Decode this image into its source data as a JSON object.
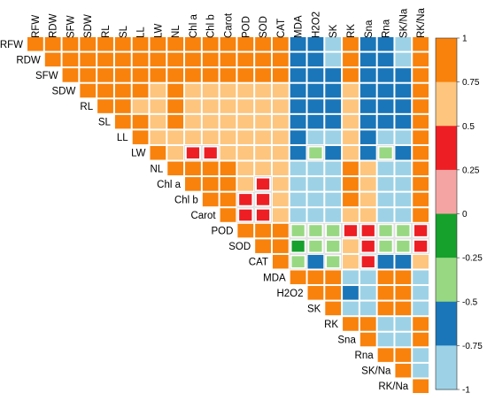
{
  "chart_data": {
    "type": "heatmap",
    "title": "",
    "variables": [
      "RFW",
      "RDW",
      "SFW",
      "SDW",
      "RL",
      "SL",
      "LL",
      "LW",
      "NL",
      "Chl a",
      "Chl b",
      "Carot",
      "POD",
      "SOD",
      "CAT",
      "MDA",
      "H2O2",
      "SK",
      "RK",
      "Sna",
      "Rna",
      "SK/Na",
      "RK/Na"
    ],
    "matrix_layout": "upper-triangle",
    "value_range": [
      -1,
      1
    ],
    "color_bins": [
      {
        "from": 0.75,
        "to": 1,
        "color": "#F8820C"
      },
      {
        "from": 0.5,
        "to": 0.75,
        "color": "#FDC57E"
      },
      {
        "from": 0.25,
        "to": 0.5,
        "color": "#ED1E24"
      },
      {
        "from": 0,
        "to": 0.25,
        "color": "#F4A5A3"
      },
      {
        "from": -0.25,
        "to": 0,
        "color": "#16A02C"
      },
      {
        "from": -0.5,
        "to": -0.25,
        "color": "#98D883"
      },
      {
        "from": -0.75,
        "to": -0.5,
        "color": "#1A76B9"
      },
      {
        "from": -1,
        "to": -0.75,
        "color": "#9DD2E6"
      }
    ],
    "legend_ticks": [
      "1",
      "0.75",
      "0.5",
      "0.25",
      "0",
      "-0.25",
      "-0.5",
      "-0.75",
      "-1"
    ],
    "legend_position": "right",
    "cells": [
      [
        "1.00",
        "0.88",
        "0.85",
        "0.86",
        "0.82",
        "0.84",
        "0.83",
        "0.80",
        "0.86",
        "0.80",
        "0.80",
        "0.80",
        "0.80",
        "0.80",
        "0.80",
        "-0.62",
        "-0.62",
        "-0.85",
        "0.80",
        "-0.62",
        "-0.62",
        "-0.85",
        "0.84"
      ],
      [
        "0.88",
        "1.00",
        "0.85",
        "0.86",
        "0.82",
        "0.84",
        "0.83",
        "0.80",
        "0.86",
        "0.80",
        "0.80",
        "0.80",
        "0.80",
        "0.80",
        "0.80",
        "-0.62",
        "-0.62",
        "-0.85",
        "0.80",
        "-0.62",
        "-0.62",
        "-0.85",
        "0.84"
      ],
      [
        "0.85",
        "0.85",
        "1.00",
        "0.86",
        "0.82",
        "0.84",
        "0.83",
        "0.80",
        "0.86",
        "0.80",
        "0.80",
        "0.80",
        "0.80",
        "0.80",
        "0.80",
        "-0.62",
        "-0.62",
        "-0.62",
        "0.80",
        "-0.62",
        "-0.62",
        "-0.62",
        "0.84"
      ],
      [
        "0.86",
        "0.86",
        "0.86",
        "1.00",
        "0.82",
        "0.84",
        "0.83",
        "0.62",
        "0.86",
        "0.62",
        "0.62",
        "0.62",
        "0.62",
        "0.62",
        "0.62",
        "-0.62",
        "-0.62",
        "-0.62",
        "0.62",
        "-0.62",
        "-0.62",
        "-0.62",
        "0.84"
      ],
      [
        "0.82",
        "0.82",
        "0.82",
        "0.82",
        "1.00",
        "0.84",
        "0.62",
        "0.62",
        "0.86",
        "0.62",
        "0.62",
        "0.62",
        "0.62",
        "0.62",
        "0.62",
        "-0.62",
        "-0.62",
        "-0.62",
        "0.62",
        "-0.62",
        "-0.62",
        "-0.62",
        "0.84"
      ],
      [
        "0.84",
        "0.84",
        "0.84",
        "0.84",
        "0.84",
        "1.00",
        "0.83",
        "0.62",
        "0.86",
        "0.62",
        "0.62",
        "0.62",
        "0.62",
        "0.62",
        "0.62",
        "-0.62",
        "-0.62",
        "-0.62",
        "0.62",
        "-0.62",
        "-0.62",
        "-0.62",
        "0.84"
      ],
      [
        "0.83",
        "0.83",
        "0.83",
        "0.83",
        "0.62",
        "0.83",
        "1.00",
        "0.62",
        "0.62",
        "0.62",
        "0.62",
        "0.62",
        "0.62",
        "0.62",
        "0.62",
        "-0.62",
        "-0.85",
        "-0.85",
        "0.62",
        "-0.62",
        "-0.85",
        "-0.85",
        "0.84"
      ],
      [
        "0.80",
        "0.80",
        "0.80",
        "0.62",
        "0.62",
        "0.62",
        "0.62",
        "1.00",
        "0.62",
        "0.40",
        "0.40",
        "0.62",
        "0.62",
        "0.62",
        "0.62",
        "-0.62",
        "-0.30",
        "-0.62",
        "0.62",
        "-0.62",
        "-0.30",
        "-0.62",
        "0.84"
      ],
      [
        "0.86",
        "0.86",
        "0.86",
        "0.86",
        "0.86",
        "0.86",
        "0.62",
        "0.62",
        "1.00",
        "0.86",
        "0.86",
        "0.86",
        "0.62",
        "0.62",
        "0.62",
        "-0.85",
        "-0.85",
        "-0.85",
        "0.86",
        "0.62",
        "-0.85",
        "-0.85",
        "0.84"
      ],
      [
        "0.80",
        "0.80",
        "0.80",
        "0.62",
        "0.62",
        "0.62",
        "0.62",
        "0.40",
        "0.86",
        "1.00",
        "0.86",
        "0.86",
        "0.62",
        "0.40",
        "0.62",
        "-0.85",
        "-0.85",
        "-0.85",
        "0.86",
        "0.62",
        "-0.85",
        "-0.85",
        "0.84"
      ],
      [
        "0.80",
        "0.80",
        "0.80",
        "0.62",
        "0.62",
        "0.62",
        "0.62",
        "0.40",
        "0.86",
        "0.86",
        "1.00",
        "0.86",
        "0.40",
        "0.40",
        "0.62",
        "-0.85",
        "-0.85",
        "-0.85",
        "0.86",
        "0.62",
        "-0.85",
        "-0.85",
        "0.84"
      ],
      [
        "0.80",
        "0.80",
        "0.80",
        "0.62",
        "0.62",
        "0.62",
        "0.62",
        "0.62",
        "0.86",
        "0.86",
        "0.86",
        "1.00",
        "0.40",
        "0.40",
        "0.62",
        "-0.85",
        "-0.85",
        "-0.85",
        "0.62",
        "0.62",
        "-0.85",
        "-0.85",
        "0.84"
      ],
      [
        "0.80",
        "0.80",
        "0.80",
        "0.62",
        "0.62",
        "0.62",
        "0.62",
        "0.62",
        "0.62",
        "0.62",
        "0.40",
        "0.40",
        "1.00",
        "0.86",
        "0.86",
        "-0.30",
        "-0.30",
        "-0.30",
        "0.40",
        "0.40",
        "-0.30",
        "-0.30",
        "0.40"
      ],
      [
        "0.80",
        "0.80",
        "0.80",
        "0.62",
        "0.62",
        "0.62",
        "0.62",
        "0.62",
        "0.62",
        "0.40",
        "0.40",
        "0.40",
        "0.86",
        "1.00",
        "0.86",
        "-0.10",
        "-0.30",
        "-0.30",
        "0.62",
        "0.40",
        "-0.30",
        "-0.30",
        "0.40"
      ],
      [
        "0.80",
        "0.80",
        "0.80",
        "0.62",
        "0.62",
        "0.62",
        "0.62",
        "0.62",
        "0.62",
        "0.62",
        "0.62",
        "0.62",
        "0.86",
        "0.86",
        "1.00",
        "-0.30",
        "-0.62",
        "-0.30",
        "0.62",
        "0.40",
        "-0.62",
        "-0.62",
        "0.62"
      ],
      [
        "-0.62",
        "-0.62",
        "-0.62",
        "-0.62",
        "-0.62",
        "-0.62",
        "-0.62",
        "-0.62",
        "-0.85",
        "-0.85",
        "-0.85",
        "-0.85",
        "-0.30",
        "-0.10",
        "-0.30",
        "1.00",
        "0.86",
        "0.86",
        "-0.85",
        "-0.85",
        "0.86",
        "0.86",
        "-0.85"
      ],
      [
        "-0.62",
        "-0.62",
        "-0.62",
        "-0.62",
        "-0.62",
        "-0.62",
        "-0.85",
        "-0.30",
        "-0.85",
        "-0.85",
        "-0.85",
        "-0.85",
        "-0.30",
        "-0.30",
        "-0.62",
        "0.86",
        "1.00",
        "0.86",
        "-0.62",
        "-0.85",
        "0.86",
        "0.86",
        "-0.85"
      ],
      [
        "-0.85",
        "-0.85",
        "-0.62",
        "-0.62",
        "-0.62",
        "-0.62",
        "-0.85",
        "-0.62",
        "-0.85",
        "-0.85",
        "-0.85",
        "-0.85",
        "-0.30",
        "-0.30",
        "-0.30",
        "0.86",
        "0.86",
        "1.00",
        "-0.85",
        "-0.85",
        "0.86",
        "0.86",
        "-0.85"
      ],
      [
        "0.80",
        "0.80",
        "0.80",
        "0.62",
        "0.62",
        "0.62",
        "0.62",
        "0.62",
        "0.86",
        "0.86",
        "0.86",
        "0.62",
        "0.40",
        "0.62",
        "0.62",
        "-0.85",
        "-0.62",
        "-0.85",
        "1.00",
        "0.86",
        "-0.85",
        "-0.85",
        "0.86"
      ],
      [
        "-0.62",
        "-0.62",
        "-0.62",
        "-0.62",
        "-0.62",
        "-0.62",
        "-0.62",
        "-0.62",
        "0.62",
        "0.62",
        "0.62",
        "0.62",
        "0.40",
        "0.40",
        "0.40",
        "-0.85",
        "-0.85",
        "-0.85",
        "0.86",
        "1.00",
        "-0.85",
        "-0.85",
        "0.86"
      ],
      [
        "-0.62",
        "-0.62",
        "-0.62",
        "-0.62",
        "-0.62",
        "-0.62",
        "-0.85",
        "-0.30",
        "-0.85",
        "-0.85",
        "-0.85",
        "-0.85",
        "-0.30",
        "-0.30",
        "-0.62",
        "0.86",
        "0.86",
        "0.86",
        "-0.85",
        "-0.85",
        "1.00",
        "0.86",
        "-0.85"
      ],
      [
        "-0.85",
        "-0.85",
        "-0.62",
        "-0.62",
        "-0.62",
        "-0.62",
        "-0.85",
        "-0.62",
        "-0.85",
        "-0.85",
        "-0.85",
        "-0.85",
        "-0.30",
        "-0.30",
        "-0.62",
        "0.86",
        "0.86",
        "0.86",
        "-0.85",
        "-0.85",
        "0.86",
        "1.00",
        "-0.85"
      ],
      [
        "0.84",
        "0.84",
        "0.84",
        "0.84",
        "0.84",
        "0.84",
        "0.84",
        "0.84",
        "0.84",
        "0.84",
        "0.84",
        "0.84",
        "0.40",
        "0.40",
        "0.62",
        "-0.85",
        "-0.85",
        "-0.85",
        "0.86",
        "0.86",
        "-0.85",
        "-0.85",
        "1.00"
      ]
    ]
  }
}
